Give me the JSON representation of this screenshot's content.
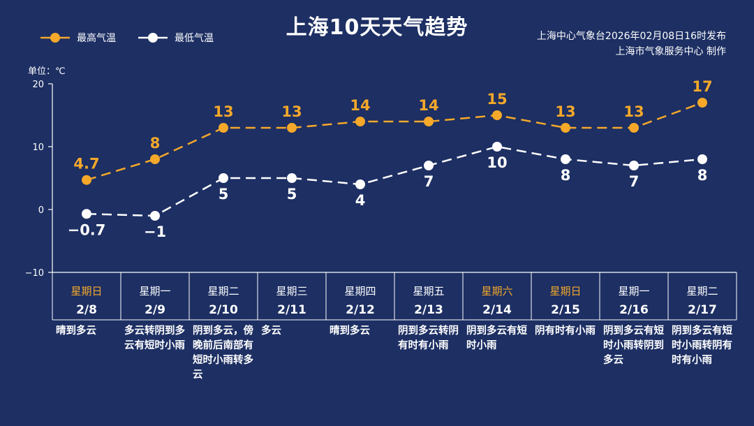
{
  "header": {
    "title": "上海10天天气趋势",
    "issuer_line1": "上海中心气象台2026年02月08日16时发布",
    "issuer_line2": "上海市气象服务中心  制作"
  },
  "colors": {
    "background": "#1d2f63",
    "high": "#f5a82a",
    "low": "#ffffff",
    "weekend": "#f5a82a"
  },
  "chart_data": {
    "type": "line",
    "unit_label": "单位：℃",
    "ylim": [
      -10,
      20
    ],
    "yticks": [
      "20",
      "10",
      "0",
      "−10"
    ],
    "ytick_values": [
      20,
      10,
      0,
      -10
    ],
    "legend_position": "top-left",
    "x": [
      "2/8",
      "2/9",
      "2/10",
      "2/11",
      "2/12",
      "2/13",
      "2/14",
      "2/15",
      "2/16",
      "2/17"
    ],
    "series": [
      {
        "name": "最高气温",
        "values": [
          4.7,
          8,
          13,
          13,
          14,
          14,
          15,
          13,
          13,
          17
        ],
        "labels": [
          "4.7",
          "8",
          "13",
          "13",
          "14",
          "14",
          "15",
          "13",
          "13",
          "17"
        ]
      },
      {
        "name": "最低气温",
        "values": [
          -0.7,
          -1,
          5,
          5,
          4,
          7,
          10,
          8,
          7,
          8
        ],
        "labels": [
          "−0.7",
          "−1",
          "5",
          "5",
          "4",
          "7",
          "10",
          "8",
          "7",
          "8"
        ]
      }
    ]
  },
  "days": [
    {
      "weekday": "星期日",
      "date": "2/8",
      "weather": "晴到多云",
      "weekend": true
    },
    {
      "weekday": "星期一",
      "date": "2/9",
      "weather": "多云转阴到多云有短时小雨",
      "weekend": false
    },
    {
      "weekday": "星期二",
      "date": "2/10",
      "weather": "阴到多云，傍晚前后南部有短时小雨转多云",
      "weekend": false
    },
    {
      "weekday": "星期三",
      "date": "2/11",
      "weather": "多云",
      "weekend": false
    },
    {
      "weekday": "星期四",
      "date": "2/12",
      "weather": "晴到多云",
      "weekend": false
    },
    {
      "weekday": "星期五",
      "date": "2/13",
      "weather": "阴到多云转阴有时有小雨",
      "weekend": false
    },
    {
      "weekday": "星期六",
      "date": "2/14",
      "weather": "阴到多云有短时小雨",
      "weekend": true
    },
    {
      "weekday": "星期日",
      "date": "2/15",
      "weather": "阴有时有小雨",
      "weekend": true
    },
    {
      "weekday": "星期一",
      "date": "2/16",
      "weather": "阴到多云有短时小雨转阴到多云",
      "weekend": false
    },
    {
      "weekday": "星期二",
      "date": "2/17",
      "weather": "阴到多云有短时小雨转阴有时有小雨",
      "weekend": false
    }
  ]
}
